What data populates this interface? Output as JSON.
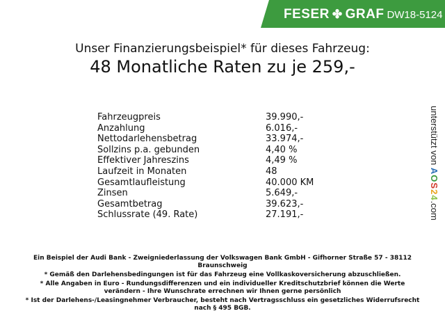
{
  "header": {
    "brand_left": "FESER",
    "brand_right": "GRAF",
    "brand_icon": "clover-icon",
    "code": "DW18-5124",
    "color": "#3d9b3f"
  },
  "title": {
    "line1": "Unser Finanzierungsbeispiel* für dieses Fahrzeug:",
    "line2": "48 Monatliche Raten zu je 259,-"
  },
  "rows": [
    {
      "label": "Fahrzeugpreis",
      "value": "39.990,-"
    },
    {
      "label": "Anzahlung",
      "value": "6.016,-"
    },
    {
      "label": "Nettodarlehensbetrag",
      "value": "33.974,-"
    },
    {
      "label": "Sollzins p.a. gebunden",
      "value": "4,40 %"
    },
    {
      "label": "Effektiver Jahreszins",
      "value": "4,49 %"
    },
    {
      "label": "Laufzeit in Monaten",
      "value": "48"
    },
    {
      "label": "Gesamtlaufleistung",
      "value": "40.000 KM"
    },
    {
      "label": "Zinsen",
      "value": "5.649,-"
    },
    {
      "label": "Gesamtbetrag",
      "value": "39.623,-"
    },
    {
      "label": "Schlussrate (49. Rate)",
      "value": "27.191,-"
    }
  ],
  "side": {
    "prefix": "unterstützt von",
    "logo": "AOS24",
    "suffix": ".com"
  },
  "footer": [
    "Ein Beispiel der Audi Bank - Zweigniederlassung der Volkswagen Bank GmbH - Gifhorner Straße 57 - 38112 Braunschweig",
    "* Gemäß den Darlehensbedingungen ist für das Fahrzeug eine Vollkaskoversicherung abzuschließen.",
    "* Alle Angaben in Euro - Rundungsdifferenzen und ein individueller Kreditschutzbrief können die Werte verändern - Ihre Wunschrate errechnen wir Ihnen gerne persönlich",
    "* Ist der Darlehens-/Leasingnehmer Verbraucher, besteht nach Vertragsschluss ein gesetzliches Widerrufsrecht nach § 495 BGB."
  ]
}
